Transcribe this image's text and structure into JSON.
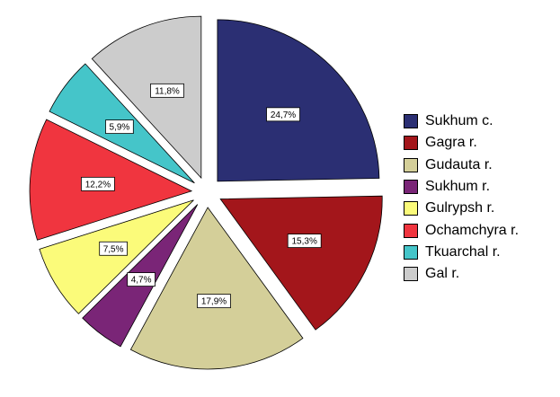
{
  "chart_data": {
    "type": "pie",
    "title": "",
    "exploded": true,
    "legend_position": "right",
    "slices": [
      {
        "name": "Sukhum c.",
        "value": 24.7,
        "label": "24,7%",
        "color": "#2b2f73"
      },
      {
        "name": "Gagra r.",
        "value": 15.3,
        "label": "15,3%",
        "color": "#a3161b"
      },
      {
        "name": "Gudauta r.",
        "value": 17.9,
        "label": "17,9%",
        "color": "#d4cf99"
      },
      {
        "name": "Sukhum r.",
        "value": 4.7,
        "label": "4,7%",
        "color": "#7a2577"
      },
      {
        "name": "Gulrypsh r.",
        "value": 7.5,
        "label": "7,5%",
        "color": "#fbfb7a"
      },
      {
        "name": "Ochamchyra r.",
        "value": 12.2,
        "label": "12,2%",
        "color": "#f0353f"
      },
      {
        "name": "Tkuarchal r.",
        "value": 5.9,
        "label": "5,9%",
        "color": "#45c5c9"
      },
      {
        "name": "Gal r.",
        "value": 11.8,
        "label": "11,8%",
        "color": "#cccccc"
      }
    ]
  }
}
